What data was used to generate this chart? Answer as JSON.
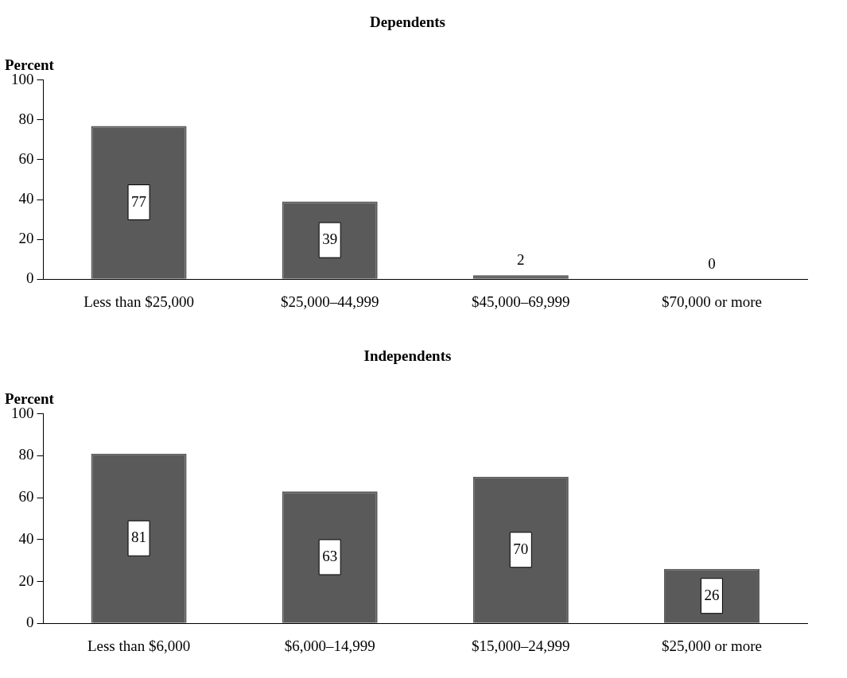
{
  "chart_data": [
    {
      "type": "bar",
      "title": "Dependents",
      "ylabel": "Percent",
      "categories": [
        "Less than $25,000",
        "$25,000–44,999",
        "$45,000–69,999",
        "$70,000 or more"
      ],
      "values": [
        77,
        39,
        2,
        0
      ],
      "color": "#5a5a5a",
      "ylim": [
        0,
        100
      ],
      "yticks": [
        0,
        20,
        40,
        60,
        80,
        100
      ],
      "grid": false,
      "legend": false,
      "data_labels": true
    },
    {
      "type": "bar",
      "title": "Independents",
      "ylabel": "Percent",
      "categories": [
        "Less than $6,000",
        "$6,000–14,999",
        "$15,000–24,999",
        "$25,000 or more"
      ],
      "values": [
        81,
        63,
        70,
        26
      ],
      "color": "#5a5a5a",
      "ylim": [
        0,
        100
      ],
      "yticks": [
        0,
        20,
        40,
        60,
        80,
        100
      ],
      "grid": false,
      "legend": false,
      "data_labels": true
    }
  ]
}
